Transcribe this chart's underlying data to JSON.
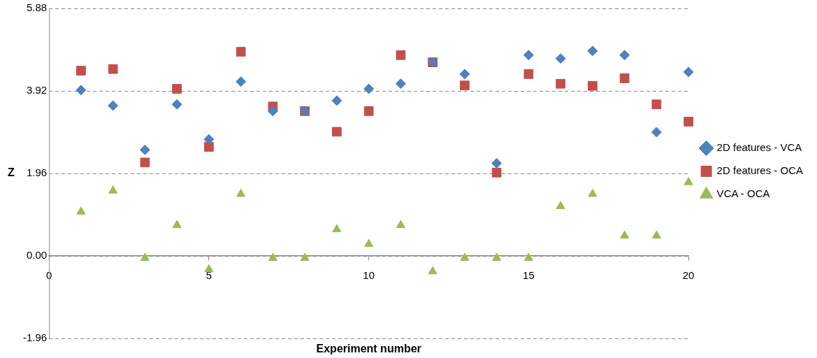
{
  "chart_data": {
    "type": "scatter",
    "xlabel": "Experiment number",
    "ylabel": "Z",
    "x": [
      1,
      2,
      3,
      4,
      5,
      6,
      7,
      8,
      9,
      10,
      11,
      12,
      13,
      14,
      15,
      16,
      17,
      18,
      19,
      20
    ],
    "series": [
      {
        "name": "2D features - VCA",
        "color": "#4f81bd",
        "marker": "diamond",
        "values": [
          3.94,
          3.57,
          2.52,
          3.6,
          2.77,
          4.14,
          3.44,
          3.44,
          3.69,
          3.97,
          4.09,
          4.6,
          4.32,
          2.2,
          4.77,
          4.69,
          4.87,
          4.77,
          2.94,
          4.37
        ]
      },
      {
        "name": "2D features - OCA",
        "color": "#c0504d",
        "marker": "square",
        "values": [
          4.4,
          4.44,
          2.22,
          3.97,
          2.59,
          4.85,
          3.55,
          3.44,
          2.95,
          3.44,
          4.77,
          4.6,
          4.05,
          1.98,
          4.32,
          4.09,
          4.04,
          4.22,
          3.6,
          3.19
        ]
      },
      {
        "name": "VCA - OCA",
        "color": "#9bbb59",
        "marker": "triangle",
        "values": [
          1.05,
          1.55,
          -0.05,
          0.73,
          -0.32,
          1.47,
          -0.05,
          -0.05,
          0.63,
          0.28,
          0.73,
          -0.37,
          -0.05,
          -0.05,
          -0.05,
          1.18,
          1.47,
          0.48,
          0.48,
          1.75
        ]
      }
    ],
    "xlim": [
      0,
      20
    ],
    "xticks": [
      0,
      5,
      10,
      15,
      20
    ],
    "ylim": [
      -1.96,
      5.88
    ],
    "yticks": [
      {
        "value": -1.96,
        "label": "-1.96"
      },
      {
        "value": 0,
        "label": "0.00"
      },
      {
        "value": 1.96,
        "label": "1.96"
      },
      {
        "value": 3.92,
        "label": "3.92"
      },
      {
        "value": 5.88,
        "label": "5.88"
      }
    ],
    "grid": "y",
    "legend": "right"
  }
}
